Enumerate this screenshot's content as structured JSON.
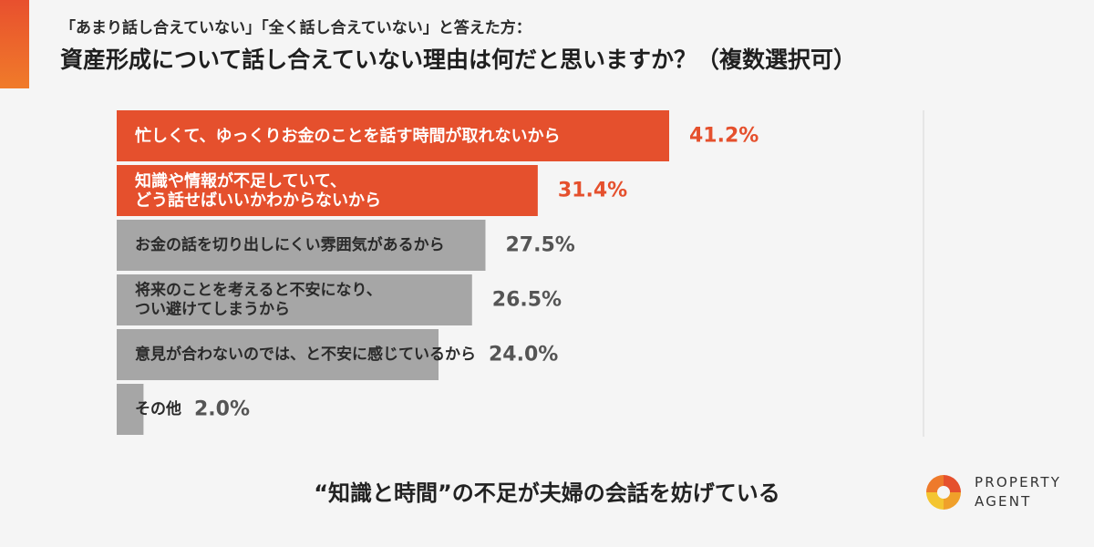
{
  "header": {
    "subtitle": "「あまり話し合えていない」「全く話し合えていない」と答えた方：",
    "title": "資産形成について話し合えていない理由は何だと思いますか？（複数選択可）"
  },
  "chart_data": {
    "type": "bar",
    "orientation": "horizontal",
    "categories": [
      [
        "忙しくて、ゆっくりお金のことを話す時間が取れないから"
      ],
      [
        "知識や情報が不足していて、",
        "どう話せばいいかわからないから"
      ],
      [
        "お金の話を切り出しにくい雰囲気があるから"
      ],
      [
        "将来のことを考えると不安になり、",
        "つい避けてしまうから"
      ],
      [
        "意見が合わないのでは、と不安に感じているから"
      ],
      [
        "その他"
      ]
    ],
    "values": [
      41.2,
      31.4,
      27.5,
      26.5,
      24.0,
      2.0
    ],
    "value_labels": [
      "41.2%",
      "31.4%",
      "27.5%",
      "26.5%",
      "24.0%",
      "2.0%"
    ],
    "xlim": [
      0,
      60
    ],
    "highlighted": [
      true,
      true,
      false,
      false,
      false,
      false
    ],
    "colors": {
      "highlight": "#e5502d",
      "normal": "#a6a6a6",
      "highlight_label": "#e5502d",
      "normal_label": "#555555"
    }
  },
  "footer": {
    "note": "“知識と時間”の不足が夫婦の会話を妨げている"
  },
  "brand": {
    "line1": "PROPERTY",
    "line2": "AGENT"
  }
}
